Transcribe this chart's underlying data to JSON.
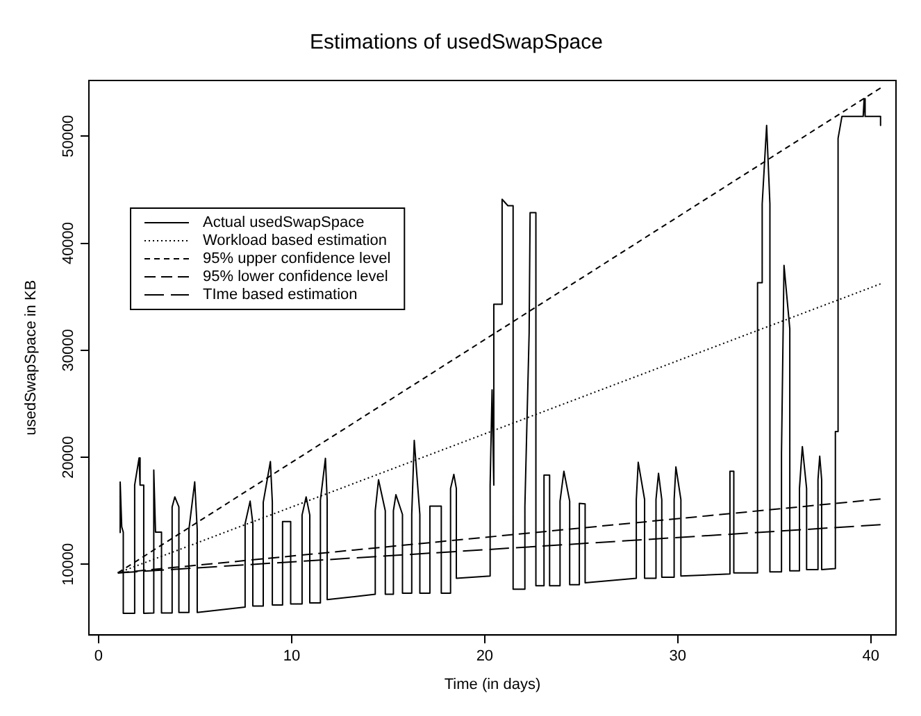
{
  "chart_data": {
    "type": "line",
    "title": "Estimations of usedSwapSpace",
    "xlabel": "Time (in days)",
    "ylabel": "usedSwapSpace in KB",
    "xlim": [
      -0.5,
      41.3
    ],
    "xticks": [
      0,
      10,
      20,
      30,
      40
    ],
    "ylim": [
      3400,
      55200
    ],
    "yticks": [
      10000,
      20000,
      30000,
      40000,
      50000
    ],
    "grid": false,
    "legend": "top left",
    "marker": "none",
    "series": [
      {
        "name": "Actual usedSwapSpace",
        "color": "#000000",
        "line_style": "solid",
        "x": [
          1.09,
          1.12,
          1.2,
          1.28,
          1.28,
          1.87,
          1.87,
          2.1,
          2.15,
          2.34,
          2.34,
          2.86,
          2.86,
          2.95,
          3.26,
          3.26,
          3.81,
          3.81,
          3.95,
          4.16,
          4.16,
          4.68,
          4.68,
          4.98,
          5.11,
          5.11,
          7.59,
          7.59,
          7.85,
          7.99,
          7.99,
          8.53,
          8.53,
          8.9,
          9.0,
          9.0,
          9.53,
          9.53,
          9.95,
          9.95,
          10.54,
          10.54,
          10.75,
          10.94,
          10.94,
          11.49,
          11.49,
          11.75,
          11.84,
          11.84,
          14.33,
          14.33,
          14.5,
          14.85,
          14.85,
          15.27,
          15.27,
          15.4,
          15.74,
          15.74,
          16.22,
          16.22,
          16.35,
          16.64,
          16.64,
          17.16,
          17.16,
          17.75,
          17.75,
          18.23,
          18.23,
          18.4,
          18.53,
          18.53,
          20.28,
          20.28,
          20.38,
          20.47,
          20.47,
          20.9,
          20.9,
          21.2,
          21.47,
          21.47,
          22.08,
          22.08,
          22.3,
          22.35,
          22.65,
          22.65,
          23.07,
          23.07,
          23.36,
          23.36,
          23.9,
          23.9,
          24.1,
          24.4,
          24.4,
          24.9,
          24.9,
          25.2,
          25.2,
          27.85,
          27.85,
          27.95,
          28.28,
          28.28,
          28.87,
          28.87,
          29.0,
          29.17,
          29.17,
          29.81,
          29.81,
          29.9,
          30.16,
          30.16,
          32.7,
          32.7,
          32.9,
          32.9,
          34.13,
          34.13,
          34.37,
          34.37,
          34.6,
          34.77,
          34.77,
          35.37,
          35.37,
          35.5,
          35.8,
          35.8,
          36.3,
          36.3,
          36.45,
          36.67,
          36.67,
          37.26,
          37.26,
          37.35,
          37.45,
          37.45,
          38.16,
          38.16,
          38.3,
          38.3,
          38.5,
          39.6,
          39.65,
          39.7,
          40.5,
          40.5
        ],
        "values": [
          12980,
          17690,
          13500,
          13000,
          5420,
          5420,
          17400,
          19940,
          17400,
          17400,
          5420,
          5460,
          18800,
          13000,
          13000,
          5460,
          5460,
          15360,
          16300,
          15360,
          5500,
          5500,
          13250,
          17700,
          13250,
          5500,
          6000,
          13800,
          15900,
          13800,
          6100,
          6100,
          15800,
          19600,
          15800,
          6200,
          6200,
          14000,
          14000,
          6300,
          6300,
          14600,
          16300,
          14600,
          6400,
          6400,
          16000,
          19900,
          16000,
          6700,
          7200,
          15000,
          17900,
          15000,
          7200,
          7200,
          15000,
          16500,
          14660,
          7300,
          7300,
          14660,
          21570,
          14660,
          7300,
          7300,
          15440,
          15440,
          7300,
          7300,
          17080,
          18400,
          17080,
          8700,
          8900,
          17400,
          26300,
          17400,
          34300,
          34300,
          44100,
          43500,
          43500,
          7670,
          7670,
          15400,
          31600,
          42850,
          42850,
          8000,
          8000,
          18340,
          18340,
          8000,
          8000,
          15900,
          18700,
          15900,
          8100,
          8100,
          15700,
          15640,
          8280,
          8700,
          16050,
          19530,
          16050,
          8700,
          8700,
          16050,
          18500,
          16050,
          8800,
          8800,
          16050,
          19100,
          16050,
          8900,
          9100,
          18700,
          18700,
          9200,
          9200,
          36300,
          36300,
          43650,
          51000,
          43650,
          9300,
          9300,
          20340,
          37930,
          32000,
          9400,
          9400,
          17080,
          21000,
          17080,
          9500,
          9500,
          17900,
          20100,
          17900,
          9500,
          9600,
          22400,
          22400,
          49800,
          51840,
          51840,
          53500,
          51840,
          51840,
          51000
        ]
      },
      {
        "name": "Workload based estimation",
        "color": "#000000",
        "line_style": "dotted",
        "x": [
          1,
          40.5
        ],
        "values": [
          9200,
          36200
        ]
      },
      {
        "name": "95% upper confidence level",
        "color": "#000000",
        "line_style": "dashed",
        "x": [
          1,
          40.5
        ],
        "values": [
          9200,
          54500
        ]
      },
      {
        "name": "95% lower confidence level",
        "color": "#000000",
        "line_style": "dashed",
        "x": [
          1,
          40.5
        ],
        "values": [
          9200,
          16100
        ]
      },
      {
        "name": "TIme based estimation",
        "color": "#000000",
        "line_style": "dashed",
        "x": [
          1,
          40.5
        ],
        "values": [
          9200,
          13700
        ]
      }
    ]
  }
}
